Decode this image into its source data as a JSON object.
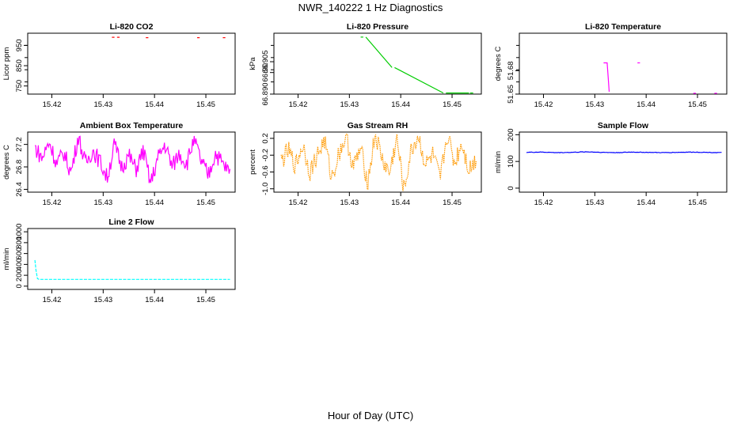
{
  "page": {
    "title": "NWR_140222  1 Hz Diagnostics",
    "xlabel": "Hour of Day (UTC)"
  },
  "chart_data": [
    {
      "id": "co2",
      "type": "line",
      "title": "Li-820 CO2",
      "ylabel": "Licor ppm",
      "xlim": [
        15.4153,
        15.4557
      ],
      "ylim": [
        710,
        1010
      ],
      "xticks": [
        "15.42",
        "15.43",
        "15.44",
        "15.45"
      ],
      "yticks": [
        "750",
        "850",
        "950"
      ],
      "color": "#ff0000",
      "series": {
        "x": [
          15.4317,
          15.4322,
          15.4327,
          15.4332,
          15.4383,
          15.4388,
          15.4483,
          15.4488,
          15.4533,
          15.4538
        ],
        "y": [
          990,
          990,
          990,
          990,
          988,
          988,
          988,
          988,
          988,
          988
        ]
      }
    },
    {
      "id": "pressure",
      "type": "line",
      "title": "Li-820 Pressure",
      "ylabel": "kPa",
      "xlim": [
        15.4153,
        15.4557
      ],
      "ylim": [
        66.89,
        66.9182
      ],
      "xticks": [
        "15.42",
        "15.43",
        "15.44",
        "15.45"
      ],
      "yticks": [
        "66.890",
        "66.905"
      ],
      "extra_ytick": "66.90",
      "color": "#00cc00",
      "series": {
        "x": [
          15.4322,
          15.4327,
          15.4332,
          15.4383,
          15.4388,
          15.4483,
          15.4488,
          15.4533,
          15.4538
        ],
        "y": [
          66.9164,
          66.9164,
          66.9164,
          66.9023,
          66.9023,
          66.8905,
          66.8905,
          66.8905,
          66.8905
        ]
      }
    },
    {
      "id": "temperature",
      "type": "line",
      "title": "Li-820 Temperature",
      "ylabel": "degrees C",
      "xlim": [
        15.4153,
        15.4557
      ],
      "ylim": [
        51.65,
        51.728
      ],
      "xticks": [
        "15.42",
        "15.43",
        "15.44",
        "15.45"
      ],
      "yticks": [
        "51.65",
        "51.68"
      ],
      "color": "#ff00ff",
      "series": {
        "x": [
          15.4317,
          15.4322,
          15.4324,
          15.4326,
          15.4328,
          15.4383,
          15.4388,
          15.4492,
          15.4497,
          15.4533,
          15.4538
        ],
        "y": [
          51.69,
          51.69,
          51.69,
          51.672,
          51.653,
          51.69,
          51.69,
          51.651,
          51.651,
          51.651,
          51.651
        ]
      }
    },
    {
      "id": "ambient",
      "type": "line",
      "title": "Ambient Box Temperature",
      "ylabel": "degrees C",
      "xlim": [
        15.4153,
        15.4557
      ],
      "ylim": [
        26.35,
        27.42
      ],
      "xticks": [
        "15.42",
        "15.43",
        "15.44",
        "15.45"
      ],
      "yticks": [
        "26.4",
        "26.8",
        "27.2"
      ],
      "color": "#ff00ff",
      "series": {
        "x0": 15.4167,
        "x1": 15.4547,
        "range": [
          26.45,
          27.35
        ],
        "anchors": [
          27.15,
          26.95,
          27.25,
          26.85,
          27.05,
          26.7,
          27.35,
          26.85,
          27.1,
          26.9,
          26.6,
          27.2,
          26.8,
          27.0,
          26.75,
          27.1,
          26.5,
          26.95,
          27.2,
          26.8,
          27.05,
          26.85,
          27.3,
          26.9,
          26.65,
          27.05,
          26.85,
          26.7
        ]
      }
    },
    {
      "id": "rh",
      "type": "line",
      "title": "Gas Stream RH",
      "ylabel": "percent",
      "xlim": [
        15.4153,
        15.4557
      ],
      "ylim": [
        -1.08,
        0.35
      ],
      "xticks": [
        "15.42",
        "15.43",
        "15.44",
        "15.45"
      ],
      "yticks": [
        "-1.0",
        "-0.6",
        "-0.2",
        "0.2"
      ],
      "color": "#ff9900",
      "series": {
        "x0": 15.4167,
        "x1": 15.4547,
        "range": [
          -1.05,
          0.3
        ],
        "anchors": [
          -0.35,
          -0.1,
          -0.45,
          0.05,
          -0.6,
          -0.2,
          0.15,
          -0.75,
          -0.15,
          0.25,
          -0.5,
          -0.05,
          -0.85,
          0.3,
          -0.3,
          -0.65,
          0.2,
          -1.05,
          -0.1,
          0.25,
          -0.45,
          -0.2,
          -0.8,
          0.3,
          -0.4,
          0.1,
          -0.55,
          -0.3
        ]
      }
    },
    {
      "id": "sample_flow",
      "type": "line",
      "title": "Sample Flow",
      "ylabel": "ml/min",
      "xlim": [
        15.4153,
        15.4557
      ],
      "ylim": [
        -15,
        210
      ],
      "xticks": [
        "15.42",
        "15.43",
        "15.44",
        "15.45"
      ],
      "yticks": [
        "0",
        "100",
        "200"
      ],
      "color": "#0000ff",
      "series": {
        "x0": 15.4167,
        "x1": 15.4547,
        "range": [
          131,
          137
        ],
        "anchors": [
          134,
          135,
          133,
          134,
          136,
          134,
          133,
          135,
          134,
          133,
          134,
          135,
          134,
          133
        ]
      }
    },
    {
      "id": "line2_flow",
      "type": "line",
      "title": "Line 2 Flow",
      "ylabel": "ml/min",
      "xlim": [
        15.4153,
        15.4557
      ],
      "ylim": [
        -60,
        1060
      ],
      "xticks": [
        "15.42",
        "15.43",
        "15.44",
        "15.45"
      ],
      "yticks": [
        "0",
        "200",
        "400",
        "600",
        "800",
        "1000"
      ],
      "color": "#00ffff",
      "series": {
        "x": [
          15.4167,
          15.4169,
          15.4172,
          15.4175,
          15.4547
        ],
        "y": [
          480,
          300,
          140,
          125,
          125
        ]
      }
    }
  ]
}
